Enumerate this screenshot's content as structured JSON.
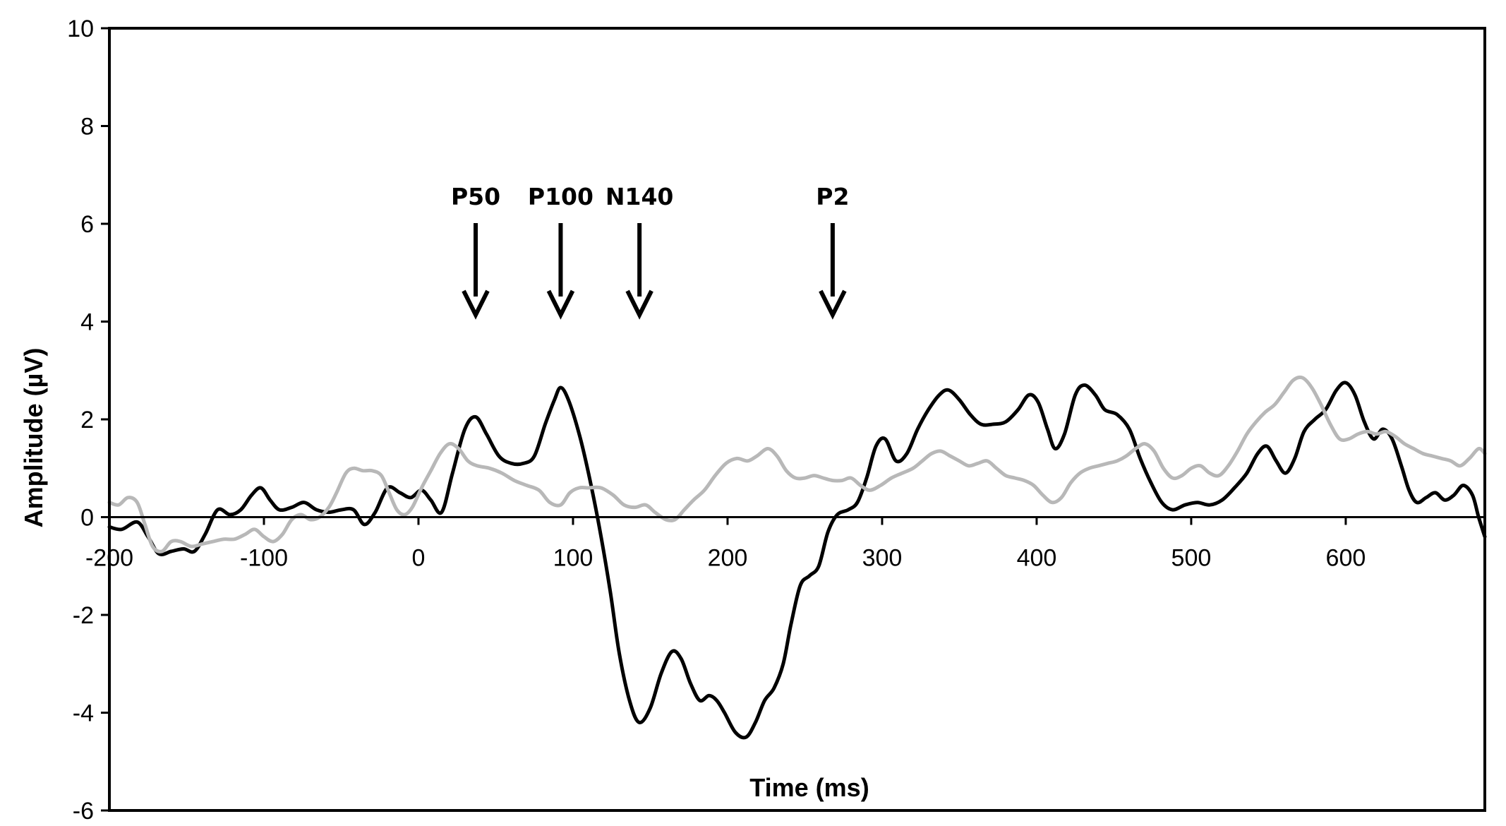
{
  "chart_data": {
    "type": "line",
    "xlabel": "Time (ms)",
    "ylabel": "Amplitude (µV)",
    "xlim": [
      -200,
      690
    ],
    "ylim": [
      -6,
      10
    ],
    "x_ticks": [
      -200,
      -100,
      0,
      100,
      200,
      300,
      400,
      500,
      600
    ],
    "y_ticks": [
      -6,
      -4,
      -2,
      0,
      2,
      4,
      6,
      8,
      10
    ],
    "grid": false,
    "legend": "none",
    "annotations": [
      {
        "label": "P50",
        "x": 37
      },
      {
        "label": "P100",
        "x": 92
      },
      {
        "label": "N140",
        "x": 143
      },
      {
        "label": "P2",
        "x": 268
      }
    ],
    "series": [
      {
        "color": "#000000",
        "points": [
          [
            -200,
            -0.2
          ],
          [
            -192,
            -0.25
          ],
          [
            -182,
            -0.1
          ],
          [
            -175,
            -0.4
          ],
          [
            -168,
            -0.75
          ],
          [
            -160,
            -0.7
          ],
          [
            -152,
            -0.65
          ],
          [
            -145,
            -0.7
          ],
          [
            -138,
            -0.35
          ],
          [
            -130,
            0.15
          ],
          [
            -122,
            0.05
          ],
          [
            -115,
            0.15
          ],
          [
            -108,
            0.45
          ],
          [
            -102,
            0.6
          ],
          [
            -96,
            0.35
          ],
          [
            -90,
            0.15
          ],
          [
            -82,
            0.2
          ],
          [
            -74,
            0.3
          ],
          [
            -66,
            0.15
          ],
          [
            -58,
            0.1
          ],
          [
            -50,
            0.15
          ],
          [
            -42,
            0.15
          ],
          [
            -35,
            -0.15
          ],
          [
            -28,
            0.1
          ],
          [
            -20,
            0.6
          ],
          [
            -12,
            0.5
          ],
          [
            -5,
            0.4
          ],
          [
            2,
            0.55
          ],
          [
            8,
            0.35
          ],
          [
            15,
            0.1
          ],
          [
            22,
            0.9
          ],
          [
            30,
            1.8
          ],
          [
            37,
            2.05
          ],
          [
            44,
            1.7
          ],
          [
            52,
            1.25
          ],
          [
            60,
            1.1
          ],
          [
            68,
            1.1
          ],
          [
            75,
            1.25
          ],
          [
            82,
            1.9
          ],
          [
            88,
            2.4
          ],
          [
            92,
            2.65
          ],
          [
            97,
            2.4
          ],
          [
            104,
            1.7
          ],
          [
            110,
            0.9
          ],
          [
            117,
            -0.2
          ],
          [
            124,
            -1.5
          ],
          [
            130,
            -2.8
          ],
          [
            137,
            -3.8
          ],
          [
            143,
            -4.2
          ],
          [
            150,
            -3.9
          ],
          [
            157,
            -3.2
          ],
          [
            164,
            -2.75
          ],
          [
            170,
            -2.9
          ],
          [
            176,
            -3.4
          ],
          [
            182,
            -3.75
          ],
          [
            188,
            -3.65
          ],
          [
            193,
            -3.75
          ],
          [
            198,
            -4.0
          ],
          [
            205,
            -4.4
          ],
          [
            212,
            -4.5
          ],
          [
            218,
            -4.2
          ],
          [
            224,
            -3.75
          ],
          [
            230,
            -3.5
          ],
          [
            236,
            -3.0
          ],
          [
            241,
            -2.2
          ],
          [
            247,
            -1.4
          ],
          [
            253,
            -1.2
          ],
          [
            259,
            -1.0
          ],
          [
            265,
            -0.3
          ],
          [
            271,
            0.05
          ],
          [
            278,
            0.15
          ],
          [
            284,
            0.3
          ],
          [
            290,
            0.8
          ],
          [
            296,
            1.45
          ],
          [
            302,
            1.6
          ],
          [
            309,
            1.15
          ],
          [
            316,
            1.3
          ],
          [
            323,
            1.8
          ],
          [
            330,
            2.2
          ],
          [
            337,
            2.5
          ],
          [
            343,
            2.6
          ],
          [
            350,
            2.4
          ],
          [
            357,
            2.1
          ],
          [
            364,
            1.9
          ],
          [
            372,
            1.9
          ],
          [
            380,
            1.95
          ],
          [
            388,
            2.2
          ],
          [
            395,
            2.5
          ],
          [
            401,
            2.35
          ],
          [
            407,
            1.8
          ],
          [
            412,
            1.4
          ],
          [
            418,
            1.7
          ],
          [
            425,
            2.5
          ],
          [
            431,
            2.7
          ],
          [
            438,
            2.5
          ],
          [
            444,
            2.2
          ],
          [
            452,
            2.1
          ],
          [
            460,
            1.8
          ],
          [
            467,
            1.2
          ],
          [
            474,
            0.7
          ],
          [
            481,
            0.3
          ],
          [
            488,
            0.15
          ],
          [
            496,
            0.25
          ],
          [
            504,
            0.3
          ],
          [
            512,
            0.25
          ],
          [
            520,
            0.35
          ],
          [
            528,
            0.6
          ],
          [
            536,
            0.9
          ],
          [
            543,
            1.3
          ],
          [
            549,
            1.45
          ],
          [
            555,
            1.15
          ],
          [
            561,
            0.9
          ],
          [
            567,
            1.2
          ],
          [
            573,
            1.75
          ],
          [
            580,
            2.0
          ],
          [
            587,
            2.2
          ],
          [
            594,
            2.6
          ],
          [
            600,
            2.75
          ],
          [
            606,
            2.5
          ],
          [
            612,
            1.95
          ],
          [
            618,
            1.6
          ],
          [
            624,
            1.8
          ],
          [
            630,
            1.6
          ],
          [
            636,
            1.05
          ],
          [
            641,
            0.55
          ],
          [
            646,
            0.3
          ],
          [
            652,
            0.4
          ],
          [
            658,
            0.5
          ],
          [
            664,
            0.35
          ],
          [
            670,
            0.45
          ],
          [
            676,
            0.65
          ],
          [
            682,
            0.45
          ],
          [
            686,
            0.0
          ],
          [
            690,
            -0.4
          ]
        ]
      },
      {
        "color": "#b8b8b8",
        "points": [
          [
            -200,
            0.3
          ],
          [
            -194,
            0.25
          ],
          [
            -188,
            0.4
          ],
          [
            -182,
            0.3
          ],
          [
            -177,
            -0.15
          ],
          [
            -172,
            -0.6
          ],
          [
            -166,
            -0.7
          ],
          [
            -160,
            -0.5
          ],
          [
            -154,
            -0.5
          ],
          [
            -147,
            -0.6
          ],
          [
            -140,
            -0.55
          ],
          [
            -133,
            -0.5
          ],
          [
            -126,
            -0.45
          ],
          [
            -119,
            -0.45
          ],
          [
            -112,
            -0.35
          ],
          [
            -106,
            -0.25
          ],
          [
            -100,
            -0.4
          ],
          [
            -94,
            -0.5
          ],
          [
            -88,
            -0.35
          ],
          [
            -82,
            -0.05
          ],
          [
            -76,
            0.05
          ],
          [
            -70,
            -0.05
          ],
          [
            -64,
            0.0
          ],
          [
            -58,
            0.2
          ],
          [
            -53,
            0.5
          ],
          [
            -47,
            0.9
          ],
          [
            -42,
            1.0
          ],
          [
            -36,
            0.95
          ],
          [
            -30,
            0.95
          ],
          [
            -24,
            0.85
          ],
          [
            -19,
            0.5
          ],
          [
            -14,
            0.15
          ],
          [
            -9,
            0.05
          ],
          [
            -4,
            0.2
          ],
          [
            2,
            0.6
          ],
          [
            8,
            0.95
          ],
          [
            14,
            1.3
          ],
          [
            20,
            1.5
          ],
          [
            26,
            1.4
          ],
          [
            32,
            1.15
          ],
          [
            38,
            1.05
          ],
          [
            46,
            1.0
          ],
          [
            54,
            0.9
          ],
          [
            62,
            0.75
          ],
          [
            70,
            0.65
          ],
          [
            78,
            0.55
          ],
          [
            85,
            0.3
          ],
          [
            92,
            0.25
          ],
          [
            98,
            0.5
          ],
          [
            104,
            0.6
          ],
          [
            110,
            0.6
          ],
          [
            118,
            0.6
          ],
          [
            126,
            0.45
          ],
          [
            133,
            0.25
          ],
          [
            140,
            0.2
          ],
          [
            147,
            0.25
          ],
          [
            153,
            0.1
          ],
          [
            160,
            -0.05
          ],
          [
            166,
            -0.05
          ],
          [
            172,
            0.15
          ],
          [
            178,
            0.35
          ],
          [
            185,
            0.55
          ],
          [
            192,
            0.85
          ],
          [
            199,
            1.1
          ],
          [
            206,
            1.2
          ],
          [
            213,
            1.15
          ],
          [
            219,
            1.25
          ],
          [
            226,
            1.4
          ],
          [
            232,
            1.25
          ],
          [
            238,
            0.95
          ],
          [
            244,
            0.8
          ],
          [
            250,
            0.8
          ],
          [
            256,
            0.85
          ],
          [
            262,
            0.8
          ],
          [
            268,
            0.75
          ],
          [
            274,
            0.75
          ],
          [
            280,
            0.8
          ],
          [
            286,
            0.65
          ],
          [
            292,
            0.55
          ],
          [
            299,
            0.65
          ],
          [
            306,
            0.8
          ],
          [
            313,
            0.9
          ],
          [
            320,
            1.0
          ],
          [
            326,
            1.15
          ],
          [
            332,
            1.3
          ],
          [
            338,
            1.35
          ],
          [
            344,
            1.25
          ],
          [
            350,
            1.15
          ],
          [
            356,
            1.05
          ],
          [
            362,
            1.1
          ],
          [
            368,
            1.15
          ],
          [
            374,
            1.0
          ],
          [
            380,
            0.85
          ],
          [
            386,
            0.8
          ],
          [
            392,
            0.75
          ],
          [
            398,
            0.65
          ],
          [
            404,
            0.45
          ],
          [
            410,
            0.3
          ],
          [
            416,
            0.4
          ],
          [
            422,
            0.7
          ],
          [
            428,
            0.9
          ],
          [
            434,
            1.0
          ],
          [
            440,
            1.05
          ],
          [
            446,
            1.1
          ],
          [
            452,
            1.15
          ],
          [
            458,
            1.25
          ],
          [
            464,
            1.4
          ],
          [
            470,
            1.5
          ],
          [
            476,
            1.35
          ],
          [
            482,
            1.0
          ],
          [
            488,
            0.8
          ],
          [
            494,
            0.85
          ],
          [
            500,
            1.0
          ],
          [
            506,
            1.05
          ],
          [
            512,
            0.9
          ],
          [
            518,
            0.85
          ],
          [
            524,
            1.05
          ],
          [
            530,
            1.35
          ],
          [
            536,
            1.7
          ],
          [
            542,
            1.95
          ],
          [
            548,
            2.15
          ],
          [
            554,
            2.3
          ],
          [
            560,
            2.55
          ],
          [
            566,
            2.8
          ],
          [
            572,
            2.85
          ],
          [
            578,
            2.65
          ],
          [
            584,
            2.3
          ],
          [
            590,
            1.9
          ],
          [
            596,
            1.6
          ],
          [
            602,
            1.6
          ],
          [
            608,
            1.7
          ],
          [
            614,
            1.75
          ],
          [
            620,
            1.7
          ],
          [
            626,
            1.75
          ],
          [
            632,
            1.65
          ],
          [
            638,
            1.5
          ],
          [
            644,
            1.4
          ],
          [
            650,
            1.3
          ],
          [
            656,
            1.25
          ],
          [
            662,
            1.2
          ],
          [
            668,
            1.15
          ],
          [
            674,
            1.05
          ],
          [
            680,
            1.2
          ],
          [
            686,
            1.4
          ],
          [
            690,
            1.3
          ]
        ]
      }
    ]
  }
}
